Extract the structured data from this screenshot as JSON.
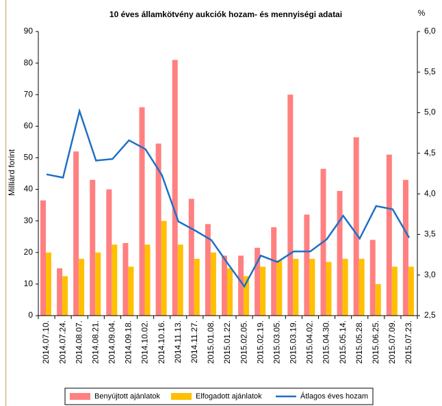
{
  "chart_data": {
    "type": "bar_line",
    "title": "10 éves államkötvény aukciók hozam- és mennyiségi adatai",
    "ylabel": "Milliárd forint",
    "y2label": "%",
    "categories": [
      "2014.07.10.",
      "2014.07.24.",
      "2014.08.07.",
      "2014.08.21.",
      "2014.09.04.",
      "2014.09.18.",
      "2014.10.02.",
      "2014.10.16.",
      "2014.11.13.",
      "2014.11.27.",
      "2015.01.08.",
      "2015.01.22.",
      "2015.02.05.",
      "2015.02.19.",
      "2015.03.05.",
      "2015.03.19.",
      "2015.04.02.",
      "2015.04.30.",
      "2015.05.14.",
      "2015.05.28.",
      "2015.06.25.",
      "2015.07.09.",
      "2015.07.23."
    ],
    "series": [
      {
        "name": "Benyújtott ajánlatok",
        "color": "#ff8080",
        "kind": "bar",
        "values": [
          36.5,
          15,
          52,
          43,
          40,
          23,
          66,
          54.5,
          81,
          37,
          29,
          19,
          19,
          21.5,
          28,
          70,
          32,
          46.5,
          39.5,
          56.5,
          24,
          51,
          43
        ]
      },
      {
        "name": "Elfogadott ajánlatok",
        "color": "#ffc000",
        "kind": "bar",
        "values": [
          20,
          12.5,
          18,
          20,
          22.5,
          15.5,
          22.5,
          30,
          22.5,
          18,
          20,
          15,
          12.5,
          15.5,
          17.5,
          18,
          18,
          17,
          18,
          18,
          10,
          15.5,
          15.5
        ]
      },
      {
        "name": "Átlagos éves hozam",
        "color": "#1f6fc5",
        "kind": "line",
        "axis": "y2",
        "values": [
          4.24,
          4.2,
          5.02,
          4.41,
          4.43,
          4.66,
          4.55,
          4.23,
          3.66,
          3.55,
          3.43,
          3.14,
          2.86,
          3.24,
          3.16,
          3.29,
          3.29,
          3.44,
          3.73,
          3.45,
          3.85,
          3.81,
          3.46
        ]
      }
    ],
    "ylim": [
      0,
      90
    ],
    "yticks": [
      0,
      10,
      20,
      30,
      40,
      50,
      60,
      70,
      80,
      90
    ],
    "y2lim": [
      2.5,
      6.0
    ],
    "y2ticks": [
      {
        "value": 2.5,
        "label": "2,5"
      },
      {
        "value": 3.0,
        "label": "3,0"
      },
      {
        "value": 3.5,
        "label": "3,5"
      },
      {
        "value": 4.0,
        "label": "4,0"
      },
      {
        "value": 4.5,
        "label": "4,5"
      },
      {
        "value": 5.0,
        "label": "5,0"
      },
      {
        "value": 5.5,
        "label": "5,5"
      },
      {
        "value": 6.0,
        "label": "6,0"
      }
    ],
    "legend": "bottom",
    "grid": false
  }
}
